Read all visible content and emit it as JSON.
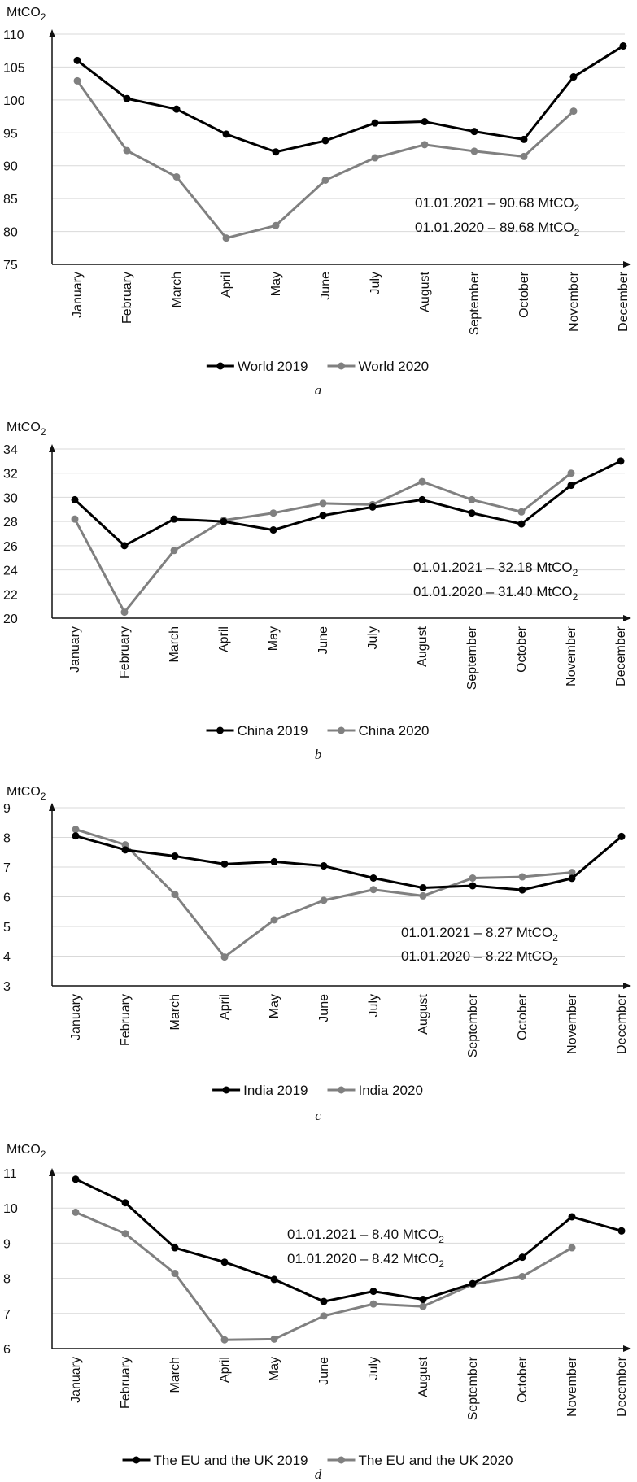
{
  "chart_data": [
    {
      "type": "line",
      "panel_label": "a",
      "y_unit": "MtCO",
      "y_unit_sub": "2",
      "ylim": [
        75,
        110
      ],
      "y_ticks": [
        "75",
        "80",
        "85",
        "90",
        "95",
        "100",
        "105",
        "110"
      ],
      "categories": [
        "January",
        "February",
        "March",
        "April",
        "May",
        "June",
        "July",
        "August",
        "September",
        "October",
        "November",
        "December"
      ],
      "series": [
        {
          "name": "World 2019",
          "color": "#000000",
          "values": [
            106.0,
            100.2,
            98.6,
            94.8,
            92.1,
            93.8,
            96.5,
            96.7,
            95.2,
            94.0,
            103.5,
            108.2
          ]
        },
        {
          "name": "World 2020",
          "color": "#808080",
          "values": [
            102.9,
            92.3,
            88.3,
            79.0,
            80.9,
            87.8,
            91.2,
            93.2,
            92.2,
            91.4,
            98.3,
            null
          ]
        }
      ],
      "annotations": [
        {
          "text": "01.01.2021 – 90.68 MtCO",
          "sub": "2"
        },
        {
          "text": "01.01.2020 – 89.68 MtCO",
          "sub": "2"
        }
      ],
      "grid": true,
      "legend_position": "bottom"
    },
    {
      "type": "line",
      "panel_label": "b",
      "y_unit": "MtCO",
      "y_unit_sub": "2",
      "ylim": [
        20,
        34
      ],
      "y_ticks": [
        "20",
        "22",
        "24",
        "26",
        "28",
        "30",
        "32",
        "34"
      ],
      "categories": [
        "January",
        "February",
        "March",
        "April",
        "May",
        "June",
        "July",
        "August",
        "September",
        "October",
        "November",
        "December"
      ],
      "series": [
        {
          "name": "China 2019",
          "color": "#000000",
          "values": [
            29.8,
            26.0,
            28.2,
            28.0,
            27.3,
            28.5,
            29.2,
            29.8,
            28.7,
            27.8,
            31.0,
            33.0
          ]
        },
        {
          "name": "China 2020",
          "color": "#808080",
          "values": [
            28.2,
            20.5,
            25.6,
            28.1,
            28.7,
            29.5,
            29.4,
            31.3,
            29.8,
            28.8,
            32.0,
            null
          ]
        }
      ],
      "annotations": [
        {
          "text": "01.01.2021 – 32.18 MtCO",
          "sub": "2"
        },
        {
          "text": "01.01.2020 – 31.40 MtCO",
          "sub": "2"
        }
      ],
      "grid": true,
      "legend_position": "bottom"
    },
    {
      "type": "line",
      "panel_label": "c",
      "y_unit": "MtCO",
      "y_unit_sub": "2",
      "ylim": [
        3,
        9
      ],
      "y_ticks": [
        "3",
        "4",
        "5",
        "6",
        "7",
        "8",
        "9"
      ],
      "categories": [
        "January",
        "February",
        "March",
        "April",
        "May",
        "June",
        "July",
        "August",
        "September",
        "October",
        "November",
        "December"
      ],
      "series": [
        {
          "name": "India 2019",
          "color": "#000000",
          "values": [
            8.05,
            7.58,
            7.37,
            7.1,
            7.18,
            7.04,
            6.63,
            6.3,
            6.37,
            6.23,
            6.62,
            8.03
          ]
        },
        {
          "name": "India 2020",
          "color": "#808080",
          "values": [
            8.27,
            7.75,
            6.08,
            3.97,
            5.22,
            5.88,
            6.24,
            6.03,
            6.63,
            6.67,
            6.82,
            null
          ]
        }
      ],
      "annotations": [
        {
          "text": "01.01.2021 – 8.27 MtCO",
          "sub": "2"
        },
        {
          "text": "01.01.2020 – 8.22 MtCO",
          "sub": "2"
        }
      ],
      "grid": true,
      "legend_position": "bottom"
    },
    {
      "type": "line",
      "panel_label": "d",
      "y_unit": "MtCO",
      "y_unit_sub": "2",
      "ylim": [
        6,
        11
      ],
      "y_ticks": [
        "6",
        "7",
        "8",
        "9",
        "10",
        "11"
      ],
      "categories": [
        "January",
        "February",
        "March",
        "April",
        "May",
        "June",
        "July",
        "August",
        "September",
        "October",
        "November",
        "December"
      ],
      "series": [
        {
          "name": "The EU and the UK 2019",
          "color": "#000000",
          "values": [
            10.82,
            10.15,
            8.87,
            8.46,
            7.97,
            7.34,
            7.63,
            7.4,
            7.85,
            8.6,
            9.75,
            9.35
          ]
        },
        {
          "name": "The EU and the UK 2020",
          "color": "#808080",
          "values": [
            9.88,
            9.27,
            8.14,
            6.25,
            6.27,
            6.93,
            7.27,
            7.2,
            7.83,
            8.05,
            8.87,
            null
          ]
        }
      ],
      "annotations": [
        {
          "text": "01.01.2021 – 8.40 MtCO",
          "sub": "2"
        },
        {
          "text": "01.01.2020 – 8.42 MtCO",
          "sub": "2"
        }
      ],
      "grid": true,
      "legend_position": "bottom"
    }
  ]
}
